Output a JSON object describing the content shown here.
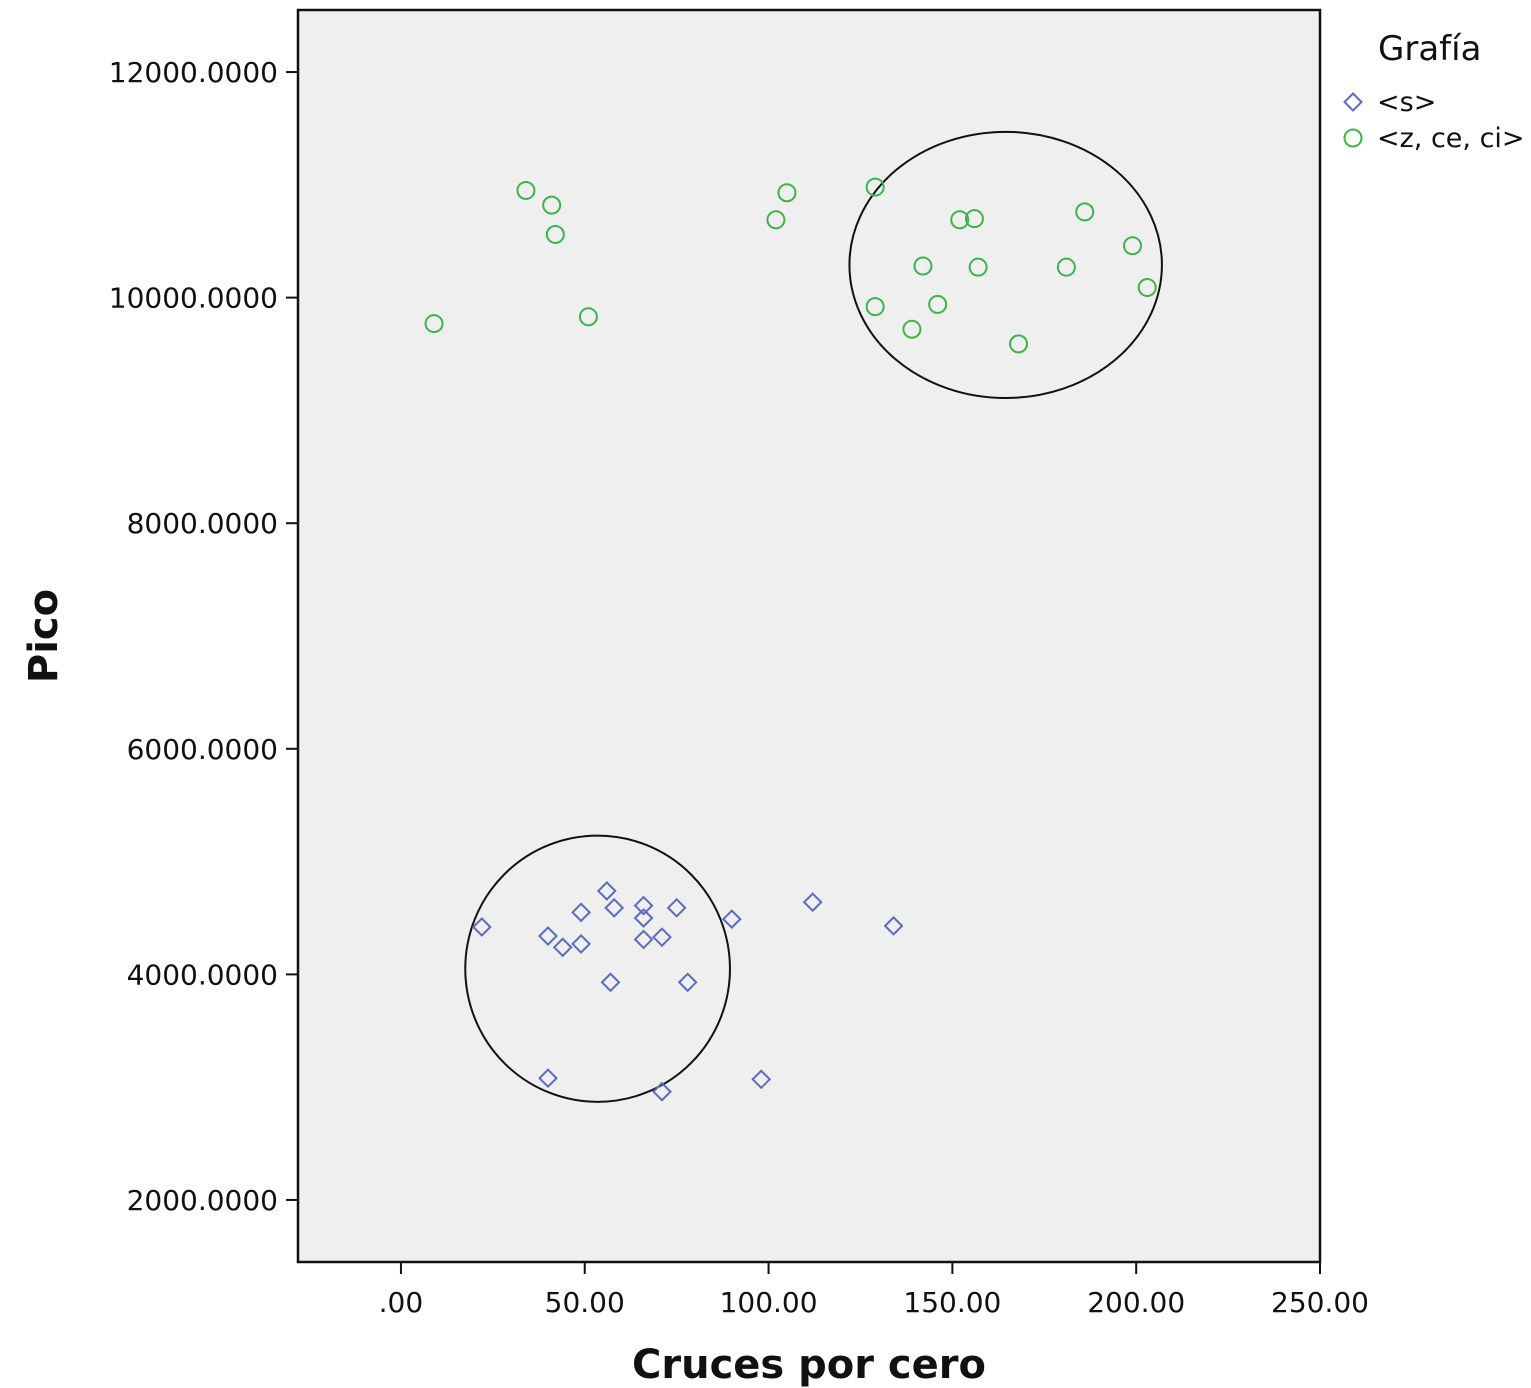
{
  "chart_data": {
    "type": "scatter",
    "xlabel": "Cruces por cero",
    "ylabel": "Pico",
    "xlim": [
      -28,
      250
    ],
    "ylim": [
      1450,
      12550
    ],
    "xticks": [
      0,
      50,
      100,
      150,
      200,
      250
    ],
    "xtick_labels": [
      ".00",
      "50.00",
      "100.00",
      "150.00",
      "200.00",
      "250.00"
    ],
    "yticks": [
      2000,
      4000,
      6000,
      8000,
      10000,
      12000
    ],
    "ytick_labels": [
      "2000.0000",
      "4000.0000",
      "6000.0000",
      "8000.0000",
      "10000.0000",
      "12000.0000"
    ],
    "grid": false,
    "background": "#efefef",
    "legend": {
      "title": "Grafía",
      "placement": "right"
    },
    "series": [
      {
        "name": "<s>",
        "marker": "diamond",
        "color": "#5b6bbd",
        "points": [
          [
            22,
            4420
          ],
          [
            40,
            4340
          ],
          [
            44,
            4240
          ],
          [
            49,
            4270
          ],
          [
            49,
            4550
          ],
          [
            56,
            4740
          ],
          [
            58,
            4590
          ],
          [
            66,
            4610
          ],
          [
            66,
            4500
          ],
          [
            66,
            4310
          ],
          [
            71,
            4330
          ],
          [
            75,
            4590
          ],
          [
            90,
            4490
          ],
          [
            112,
            4640
          ],
          [
            134,
            4430
          ],
          [
            57,
            3930
          ],
          [
            78,
            3930
          ],
          [
            40,
            3080
          ],
          [
            71,
            2960
          ],
          [
            98,
            3070
          ]
        ]
      },
      {
        "name": "<z, ce, ci>",
        "marker": "circle",
        "color": "#3cb44b",
        "points": [
          [
            9,
            9770
          ],
          [
            34,
            10950
          ],
          [
            41,
            10820
          ],
          [
            42,
            10560
          ],
          [
            51,
            9830
          ],
          [
            102,
            10690
          ],
          [
            105,
            10930
          ],
          [
            129,
            10980
          ],
          [
            129,
            9920
          ],
          [
            139,
            9720
          ],
          [
            142,
            10280
          ],
          [
            146,
            9940
          ],
          [
            152,
            10690
          ],
          [
            156,
            10700
          ],
          [
            157,
            10270
          ],
          [
            168,
            9590
          ],
          [
            181,
            10270
          ],
          [
            186,
            10760
          ],
          [
            199,
            10460
          ],
          [
            203,
            10090
          ]
        ]
      }
    ],
    "annotations": [
      {
        "type": "ellipse",
        "cx": 164.5,
        "cy": 10290,
        "rx": 42.5,
        "ry": 1180
      },
      {
        "type": "ellipse",
        "cx": 53.5,
        "cy": 4050,
        "rx": 36,
        "ry": 1180
      }
    ]
  }
}
